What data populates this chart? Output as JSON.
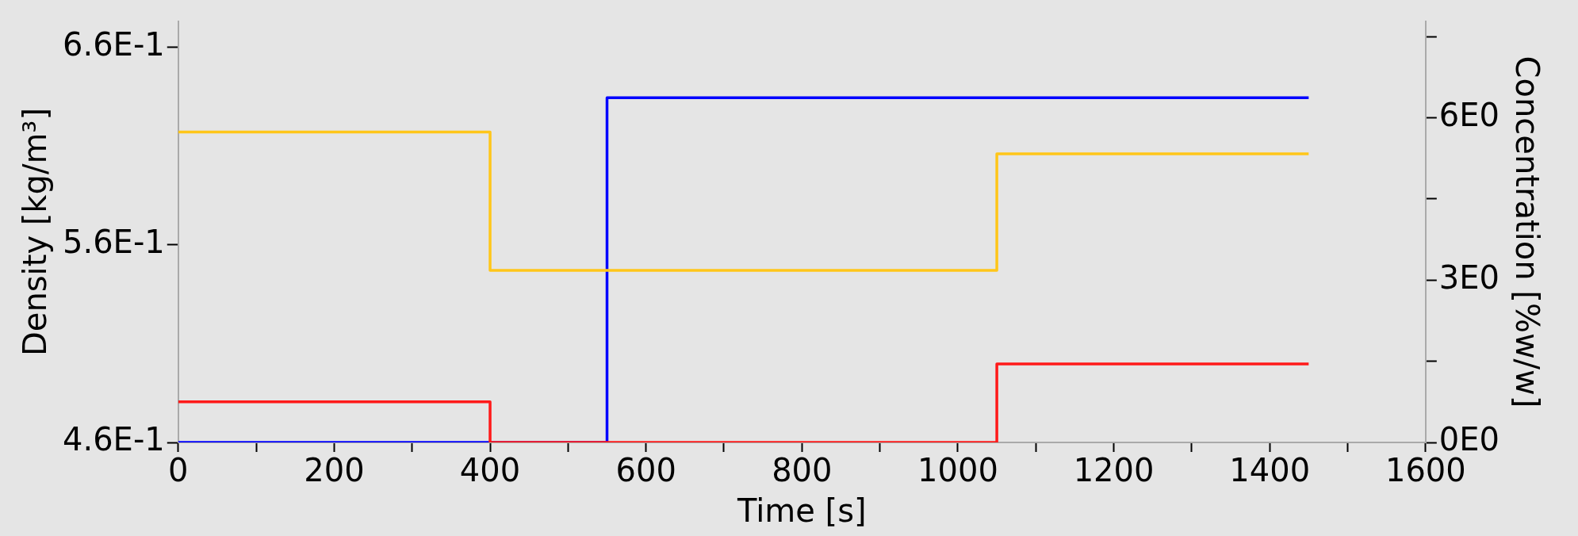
{
  "chart_data": {
    "type": "step",
    "xlabel": "Time [s]",
    "ylabel": "Density [kg/m³]",
    "y2label": "Concentration [%w/w]",
    "xlim": [
      0,
      1600
    ],
    "xticks": [
      0,
      {
        "value": 100,
        "label": null
      },
      200,
      {
        "value": 300,
        "label": null
      },
      400,
      {
        "value": 500,
        "label": null
      },
      600,
      {
        "value": 700,
        "label": null
      },
      800,
      {
        "value": 900,
        "label": null
      },
      1000,
      {
        "value": 1100,
        "label": null
      },
      1200,
      {
        "value": 1300,
        "label": null
      },
      1400,
      {
        "value": 1500,
        "label": null
      },
      1600
    ],
    "ylim": [
      0.46,
      0.673
    ],
    "yticks": [
      {
        "value": 0.46,
        "label": "4.6E-1"
      },
      {
        "value": 0.56,
        "label": "5.6E-1"
      },
      {
        "value": 0.66,
        "label": "6.6E-1"
      }
    ],
    "y2lim": [
      0,
      7.78
    ],
    "y2ticks": [
      {
        "value": 0,
        "label": "0E0"
      },
      {
        "value": 1.5,
        "label": null
      },
      {
        "value": 3,
        "label": "3E0"
      },
      {
        "value": 4.5,
        "label": null
      },
      {
        "value": 6,
        "label": "6E0"
      },
      {
        "value": 7.5,
        "label": null
      }
    ],
    "grid": false,
    "marker": "none",
    "series": [
      {
        "color": "#ffc61a",
        "x": [
          0,
          400,
          1050,
          1450
        ],
        "values": [
          0.617,
          0.547,
          0.606,
          0.606
        ]
      },
      {
        "color": "#ff1a1a",
        "axis": "y2",
        "x": [
          0,
          400,
          1050,
          1450
        ],
        "values": [
          0.75,
          0,
          1.45,
          1.45
        ]
      },
      {
        "color": "#0000ff",
        "axis": "y2",
        "x": [
          0,
          550,
          1450
        ],
        "values": [
          0,
          6.37,
          6.37
        ]
      }
    ]
  }
}
